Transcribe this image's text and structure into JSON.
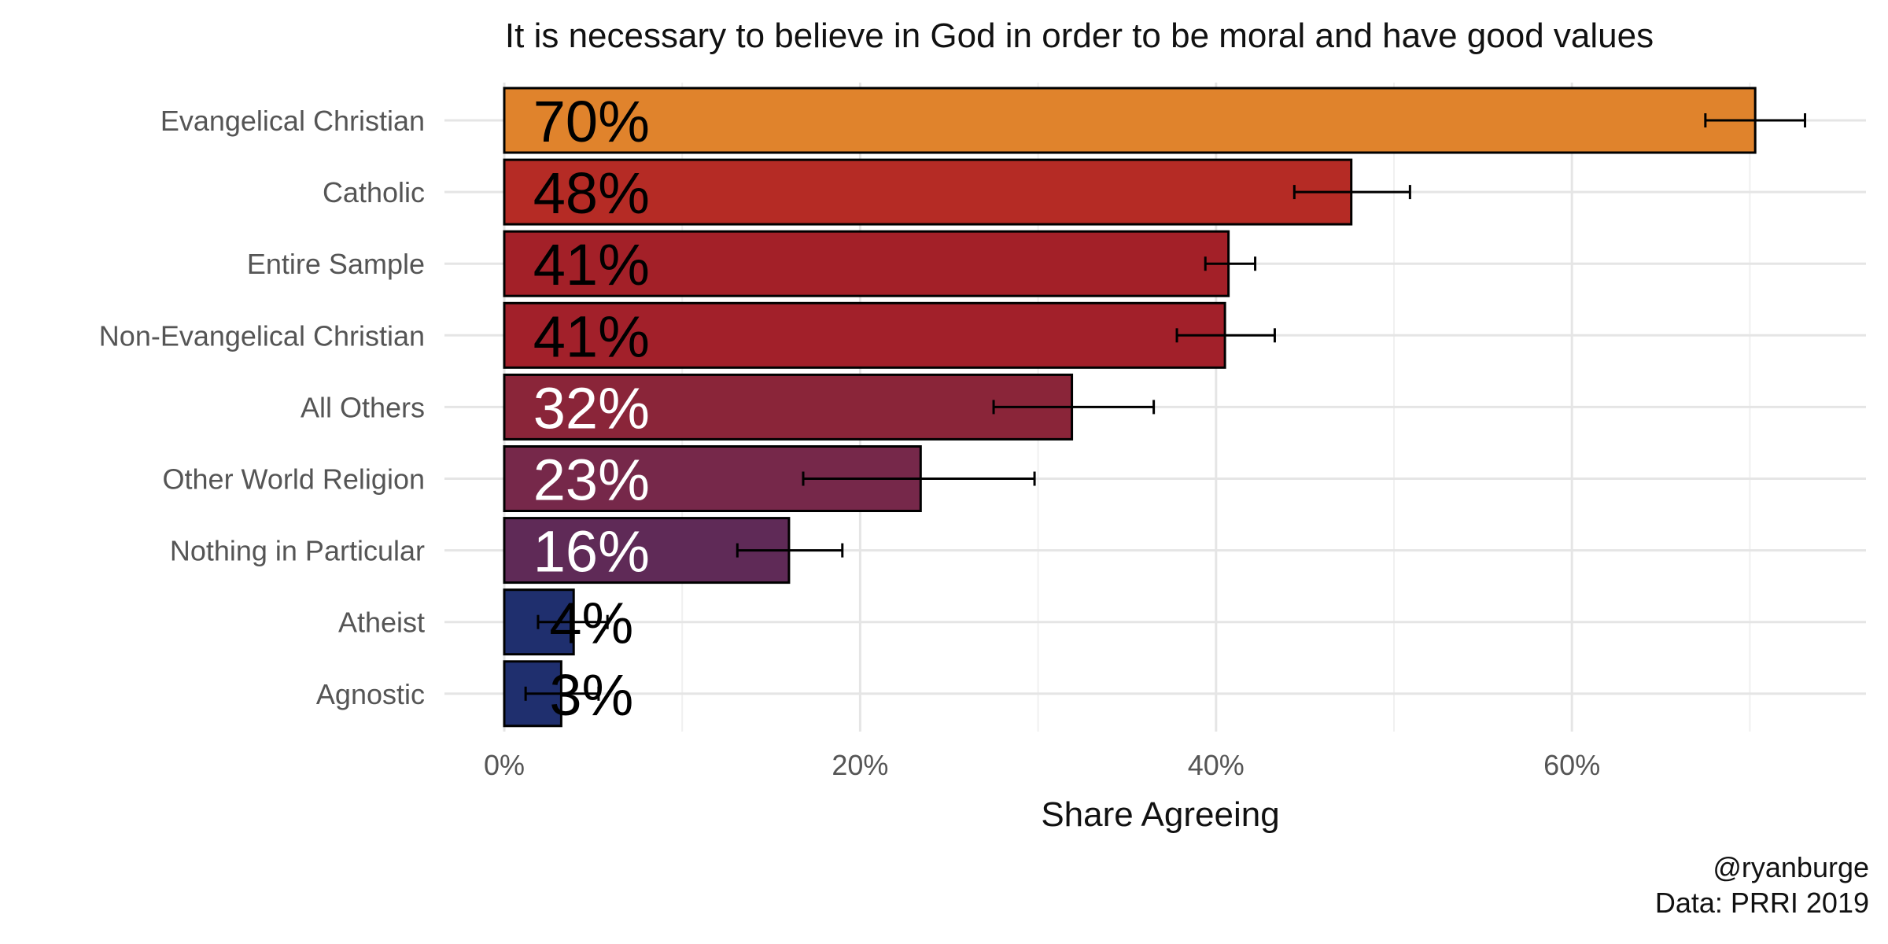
{
  "chart_data": {
    "type": "bar",
    "orientation": "horizontal",
    "title": "It is necessary to believe in God in order to be moral and have good values",
    "xlabel": "Share Agreeing",
    "ylabel": "",
    "xlim": [
      0,
      76
    ],
    "x_ticks": [
      0,
      20,
      40,
      60
    ],
    "x_tick_labels": [
      "0%",
      "20%",
      "40%",
      "60%"
    ],
    "grid": true,
    "categories": [
      "Evangelical Christian",
      "Catholic",
      "Entire Sample",
      "Non-Evangelical Christian",
      "All Others",
      "Other World Religion",
      "Nothing in Particular",
      "Atheist",
      "Agnostic"
    ],
    "values": [
      70.3,
      47.6,
      40.7,
      40.5,
      31.9,
      23.4,
      16.0,
      3.9,
      3.2
    ],
    "data_labels": [
      "70%",
      "48%",
      "41%",
      "41%",
      "32%",
      "23%",
      "16%",
      "4%",
      "3%"
    ],
    "error_low": [
      67.5,
      44.4,
      39.4,
      37.8,
      27.5,
      16.8,
      13.1,
      1.9,
      1.2
    ],
    "error_high": [
      73.1,
      50.9,
      42.2,
      43.3,
      36.5,
      29.8,
      19.0,
      5.8,
      5.3
    ],
    "colors": [
      "#E0832C",
      "#B52B25",
      "#A32028",
      "#A2202A",
      "#8A2539",
      "#76284A",
      "#5F2A57",
      "#1F2F6E",
      "#1F2F6E"
    ],
    "label_colors": [
      "#000000",
      "#000000",
      "#000000",
      "#000000",
      "#ffffff",
      "#ffffff",
      "#ffffff",
      "#000000",
      "#000000"
    ]
  },
  "caption": {
    "author": "@ryanburge",
    "source": "Data: PRRI 2019"
  }
}
